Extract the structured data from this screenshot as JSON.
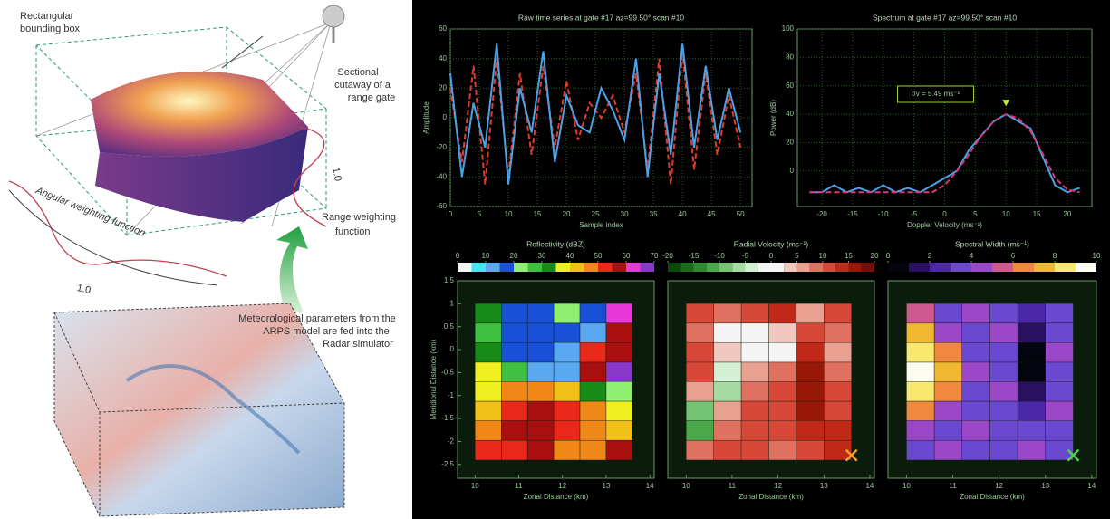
{
  "diagram": {
    "bounding_box": [
      "Rectangular",
      "bounding box"
    ],
    "cutaway": [
      "Sectional",
      "cutaway of a",
      "range gate"
    ],
    "range_weighting": [
      "Range weighting",
      "function"
    ],
    "angular_weighting": "Angular weighting function",
    "range_peak": "1.0",
    "angular_peak": "1.0",
    "feed_note": [
      "Meteorological parameters from the",
      "ARPS model are fed into the",
      "Radar simulator"
    ]
  },
  "chart_data": [
    {
      "type": "line",
      "title": "Raw time series at gate #17 az=99.50° scan #10",
      "xlabel": "Sample index",
      "ylabel": "Amplitude",
      "x": [
        0,
        2,
        4,
        6,
        8,
        10,
        12,
        14,
        16,
        18,
        20,
        22,
        24,
        26,
        28,
        30,
        32,
        34,
        36,
        38,
        40,
        42,
        44,
        46,
        48,
        50
      ],
      "xlim": [
        0,
        52
      ],
      "xticks": [
        0,
        5,
        10,
        15,
        20,
        25,
        30,
        35,
        40,
        45,
        50
      ],
      "ylim": [
        -60,
        60
      ],
      "yticks": [
        -60,
        -40,
        -20,
        0,
        20,
        40,
        60
      ],
      "grid": true,
      "series": [
        {
          "color": "#e03c2c",
          "dashed": true,
          "values": [
            20,
            -30,
            35,
            -45,
            40,
            -40,
            30,
            -25,
            35,
            -20,
            25,
            -15,
            10,
            0,
            15,
            -10,
            30,
            -35,
            40,
            -45,
            45,
            -35,
            30,
            -25,
            15,
            -20
          ]
        },
        {
          "color": "#4aa3e8",
          "dashed": false,
          "values": [
            30,
            -40,
            10,
            -20,
            50,
            -45,
            20,
            -10,
            45,
            -30,
            15,
            -5,
            -10,
            20,
            5,
            -15,
            40,
            -40,
            30,
            -25,
            50,
            -20,
            35,
            -15,
            20,
            -10
          ]
        }
      ]
    },
    {
      "type": "line",
      "title": "Spectrum at gate #17 az=99.50° scan #10",
      "xlabel": "Doppler Velocity (ms⁻¹)",
      "ylabel": "Power (dB)",
      "annotation": "σv = 5.49 ms⁻¹",
      "x": [
        -22,
        -20,
        -18,
        -16,
        -14,
        -12,
        -10,
        -8,
        -6,
        -4,
        -2,
        0,
        2,
        4,
        6,
        8,
        10,
        12,
        14,
        16,
        18,
        20,
        22
      ],
      "xlim": [
        -24,
        24
      ],
      "xticks": [
        -20,
        -15,
        -10,
        -5,
        0,
        5,
        10,
        15,
        20
      ],
      "ylim": [
        -25,
        100
      ],
      "yticks": [
        0,
        20,
        40,
        60,
        80,
        100
      ],
      "grid": true,
      "series": [
        {
          "color": "#4aa3e8",
          "dashed": false,
          "values": [
            -15,
            -15,
            -10,
            -15,
            -12,
            -15,
            -10,
            -15,
            -12,
            -15,
            -10,
            -5,
            0,
            15,
            25,
            35,
            40,
            35,
            30,
            10,
            -10,
            -15,
            -12
          ]
        },
        {
          "color": "#e0357a",
          "dashed": true,
          "values": [
            -15,
            -15,
            -15,
            -15,
            -15,
            -15,
            -15,
            -15,
            -15,
            -15,
            -15,
            -10,
            0,
            12,
            25,
            35,
            40,
            37,
            28,
            12,
            -5,
            -13,
            -15
          ]
        }
      ]
    },
    {
      "type": "heatmap",
      "title": "Reflectivity (dBZ)",
      "xlabel": "Zonal Distance (km)",
      "ylabel": "Meridional Distance (km)",
      "xlim": [
        9.6,
        14.1
      ],
      "xticks": [
        10,
        11,
        12,
        13,
        14
      ],
      "ylim": [
        -2.8,
        1.5
      ],
      "yticks": [
        1.5,
        1,
        0.5,
        0,
        -0.5,
        -1,
        -1.5,
        -2,
        -2.5
      ],
      "clim": [
        0,
        70
      ],
      "cticks": [
        0,
        10,
        20,
        30,
        40,
        50,
        60,
        70
      ],
      "colors": [
        "#f4f4f4",
        "#40e8f0",
        "#5aa8f0",
        "#1850d8",
        "#90ee70",
        "#40c040",
        "#188a18",
        "#f0f020",
        "#f0c018",
        "#f08818",
        "#e82818",
        "#a81010",
        "#e838d8",
        "#8838c8"
      ],
      "x": [
        10.3,
        10.9,
        11.5,
        12.1,
        12.7,
        13.3
      ],
      "y": [
        0.79,
        0.36,
        -0.06,
        -0.49,
        -0.91,
        -1.34,
        -1.76,
        -2.19
      ],
      "z": [
        [
          30,
          15,
          15,
          20,
          15,
          60
        ],
        [
          28,
          15,
          18,
          15,
          12,
          55
        ],
        [
          32,
          18,
          15,
          12,
          50,
          58
        ],
        [
          35,
          25,
          10,
          10,
          55,
          65
        ],
        [
          38,
          45,
          48,
          40,
          30,
          20
        ],
        [
          42,
          50,
          55,
          52,
          45,
          35
        ],
        [
          45,
          55,
          58,
          50,
          48,
          40
        ],
        [
          50,
          52,
          55,
          48,
          45,
          55
        ]
      ]
    },
    {
      "type": "heatmap",
      "title": "Radial Velocity (ms⁻¹)",
      "xlabel": "Zonal Distance (km)",
      "xlim": [
        9.6,
        14.1
      ],
      "xticks": [
        10,
        11,
        12,
        13,
        14
      ],
      "ylim": [
        -2.8,
        1.5
      ],
      "clim": [
        -20,
        20
      ],
      "cticks": [
        -20,
        -15,
        -10,
        -5,
        0,
        5,
        10,
        15,
        20
      ],
      "colors": [
        "#0a4a0a",
        "#1a6a1a",
        "#2e8a2e",
        "#4aa84a",
        "#74c474",
        "#a4dca4",
        "#d4f0d4",
        "#f4f4f4",
        "#f4f4f4",
        "#f0c8c0",
        "#e8a090",
        "#e07060",
        "#d84838",
        "#c02818",
        "#981808",
        "#701008"
      ],
      "x": [
        10.3,
        10.9,
        11.5,
        12.1,
        12.7,
        13.3
      ],
      "y": [
        0.79,
        0.36,
        -0.06,
        -0.49,
        -0.91,
        -1.34,
        -1.76,
        -2.19
      ],
      "z": [
        [
          10,
          8,
          12,
          14,
          6,
          10
        ],
        [
          8,
          2,
          0,
          4,
          12,
          8
        ],
        [
          10,
          4,
          1,
          2,
          14,
          6
        ],
        [
          12,
          -4,
          5,
          8,
          15,
          9
        ],
        [
          6,
          -6,
          8,
          10,
          16,
          10
        ],
        [
          -10,
          7,
          10,
          12,
          15,
          12
        ],
        [
          -12,
          9,
          11,
          10,
          14,
          13
        ],
        [
          8,
          10,
          12,
          9,
          12,
          14
        ]
      ],
      "marker": {
        "x": 13.6,
        "y": -2.3,
        "color": "#f0a030"
      }
    },
    {
      "type": "heatmap",
      "title": "Spectral Width (ms⁻¹)",
      "xlabel": "Zonal Distance (km)",
      "xlim": [
        9.6,
        14.1
      ],
      "xticks": [
        10,
        11,
        12,
        13,
        14
      ],
      "ylim": [
        -2.8,
        1.5
      ],
      "clim": [
        0,
        10
      ],
      "cticks": [
        0,
        2,
        4,
        6,
        8,
        10
      ],
      "colors": [
        "#050510",
        "#2a1060",
        "#4a28a8",
        "#6a48d0",
        "#9a48c8",
        "#d05890",
        "#f08840",
        "#f0b830",
        "#f8e870",
        "#fcfcf0"
      ],
      "x": [
        10.3,
        10.9,
        11.5,
        12.1,
        12.7,
        13.3
      ],
      "y": [
        0.79,
        0.36,
        -0.06,
        -0.49,
        -0.91,
        -1.34,
        -1.76,
        -2.19
      ],
      "z": [
        [
          5,
          3,
          4,
          3,
          2,
          3
        ],
        [
          7,
          4,
          3,
          4,
          1,
          3
        ],
        [
          8,
          6,
          3,
          3,
          0.5,
          4
        ],
        [
          9,
          7,
          4,
          3,
          0.5,
          3
        ],
        [
          8,
          6,
          3,
          4,
          1,
          3
        ],
        [
          6,
          4,
          3,
          3,
          2,
          4
        ],
        [
          4,
          3,
          4,
          3,
          3,
          3
        ],
        [
          3,
          4,
          3,
          3,
          4,
          3
        ]
      ],
      "marker": {
        "x": 13.6,
        "y": -2.3,
        "color": "#50d050"
      }
    }
  ]
}
